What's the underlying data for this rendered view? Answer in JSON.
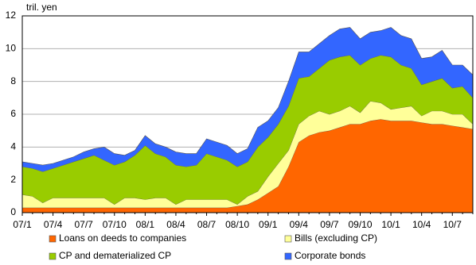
{
  "chart_data": {
    "type": "stacked-area",
    "y_unit_label": "tril. yen",
    "categories": [
      "07/1",
      null,
      null,
      "07/4",
      null,
      null,
      "07/7",
      null,
      null,
      "07/10",
      null,
      null,
      "08/1",
      null,
      null,
      "08/4",
      null,
      null,
      "08/7",
      null,
      null,
      "08/10",
      null,
      null,
      "09/1",
      null,
      null,
      "09/4",
      null,
      null,
      "09/7",
      null,
      null,
      "09/10",
      null,
      null,
      "10/1",
      null,
      null,
      "10/4",
      null,
      null,
      "10/7",
      null,
      null
    ],
    "series": [
      {
        "name": "Loans on deeds to companies",
        "color": "#ff6600",
        "values": [
          0.3,
          0.3,
          0.3,
          0.3,
          0.3,
          0.3,
          0.3,
          0.3,
          0.3,
          0.3,
          0.3,
          0.3,
          0.3,
          0.3,
          0.3,
          0.3,
          0.3,
          0.3,
          0.3,
          0.3,
          0.3,
          0.4,
          0.5,
          0.8,
          1.2,
          1.6,
          2.8,
          4.3,
          4.7,
          4.9,
          5.0,
          5.2,
          5.4,
          5.4,
          5.6,
          5.7,
          5.6,
          5.6,
          5.6,
          5.5,
          5.4,
          5.4,
          5.3,
          5.2,
          5.1
        ]
      },
      {
        "name": "Bills (excluding CP)",
        "color": "#ffff99",
        "values": [
          0.8,
          0.7,
          0.3,
          0.6,
          0.6,
          0.6,
          0.6,
          0.6,
          0.6,
          0.2,
          0.6,
          0.6,
          0.5,
          0.6,
          0.6,
          0.2,
          0.5,
          0.5,
          0.5,
          0.5,
          0.5,
          0.1,
          0.5,
          0.5,
          1.0,
          1.4,
          1.0,
          1.1,
          1.2,
          1.3,
          1.0,
          1.0,
          1.1,
          0.7,
          1.2,
          1.0,
          0.7,
          0.8,
          0.9,
          0.4,
          0.8,
          0.8,
          0.7,
          0.8,
          0.3
        ]
      },
      {
        "name": "CP and dematerialized CP",
        "color": "#99cc00",
        "values": [
          1.7,
          1.7,
          1.9,
          1.8,
          2.0,
          2.2,
          2.4,
          2.6,
          2.3,
          2.4,
          2.2,
          2.6,
          3.3,
          2.7,
          2.5,
          2.4,
          2.0,
          2.1,
          2.8,
          2.6,
          2.4,
          2.3,
          2.1,
          2.7,
          2.4,
          2.4,
          2.7,
          2.8,
          2.4,
          2.6,
          3.3,
          3.3,
          3.1,
          2.9,
          2.6,
          2.9,
          3.2,
          2.6,
          2.3,
          1.9,
          1.8,
          2.0,
          1.6,
          1.7,
          1.6
        ]
      },
      {
        "name": "Corporate bonds",
        "color": "#3366ff",
        "values": [
          0.3,
          0.3,
          0.4,
          0.3,
          0.3,
          0.3,
          0.4,
          0.4,
          0.8,
          0.7,
          0.4,
          0.3,
          0.6,
          0.6,
          0.6,
          0.8,
          0.8,
          0.7,
          0.9,
          0.9,
          0.9,
          0.8,
          0.8,
          1.2,
          1.0,
          1.0,
          1.5,
          1.6,
          1.5,
          1.5,
          1.5,
          1.7,
          1.7,
          1.6,
          1.6,
          1.5,
          1.8,
          1.8,
          1.8,
          1.6,
          1.5,
          1.7,
          1.4,
          1.3,
          1.4
        ]
      }
    ],
    "ylim": [
      0,
      12
    ],
    "yticks": [
      0,
      2,
      4,
      6,
      8,
      10,
      12
    ],
    "grid": true
  }
}
